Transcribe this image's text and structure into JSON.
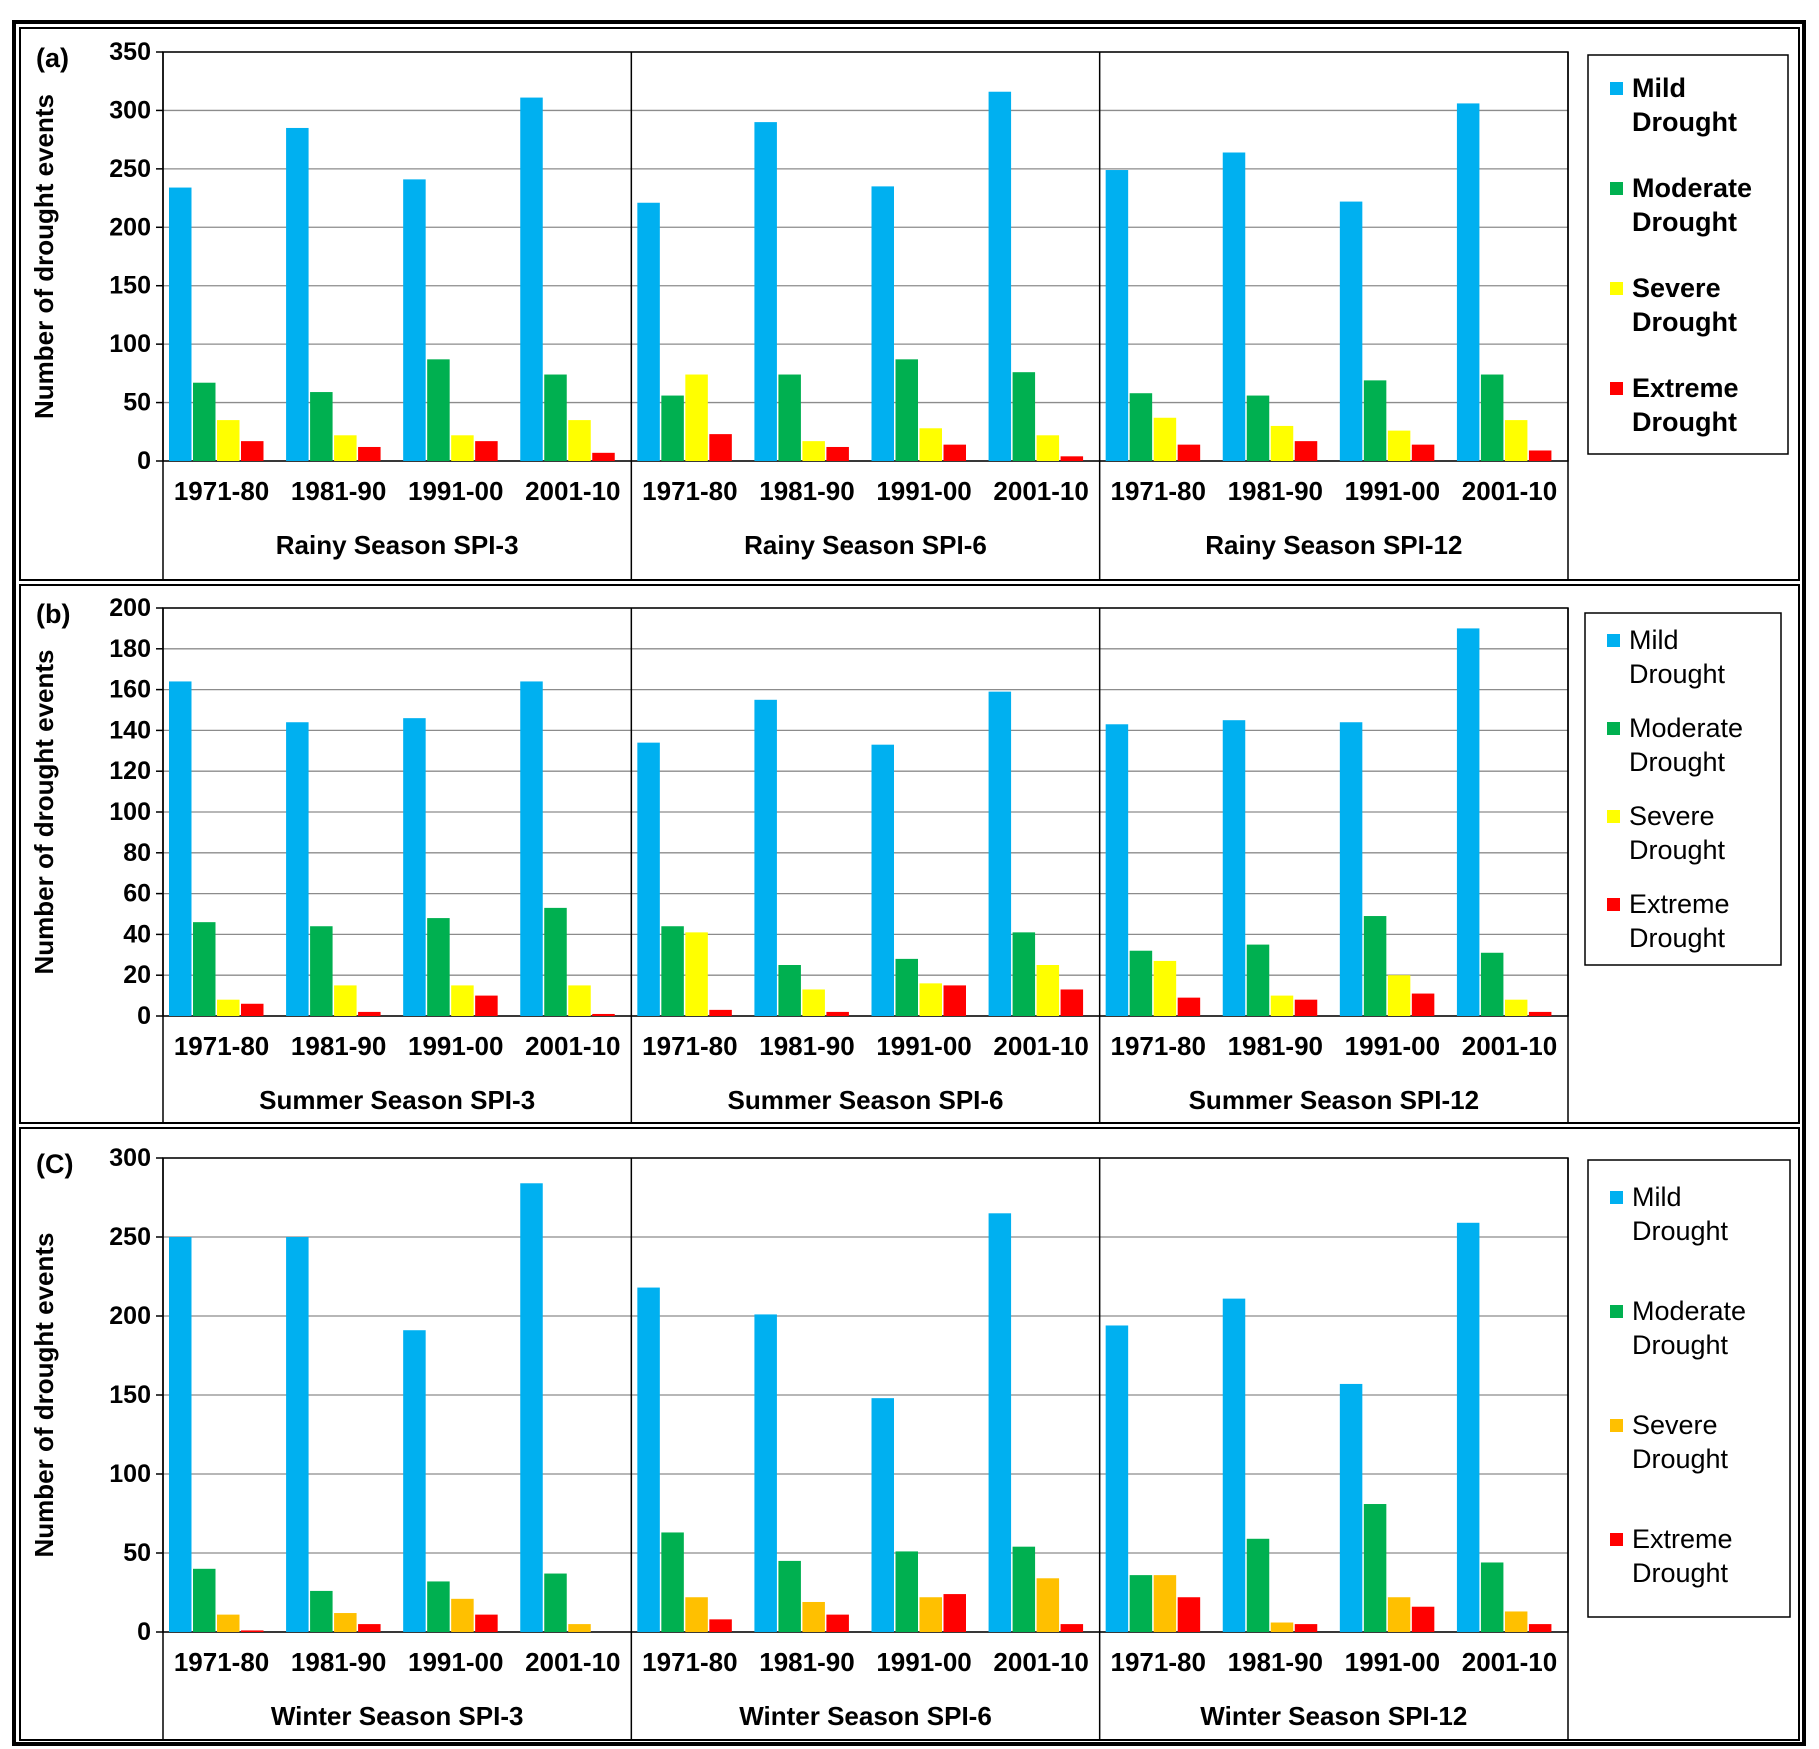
{
  "colors": {
    "mild": "#00b0f0",
    "moderate": "#00b050",
    "severe": "#ffff00",
    "severe_winter": "#ffc000",
    "extreme": "#ff0000"
  },
  "chart_data": [
    {
      "type": "bar",
      "panel_label": "(a)",
      "ylabel": "Number of drought events",
      "ylim": [
        0,
        350
      ],
      "yticks": [
        "0",
        "50",
        "100",
        "150",
        "200",
        "250",
        "300",
        "350"
      ],
      "categories": [
        "1971-80",
        "1981-90",
        "1991-00",
        "2001-10"
      ],
      "groups": [
        "Rainy Season SPI-3",
        "Rainy Season SPI-6",
        "Rainy Season SPI-12"
      ],
      "legend": [
        "Mild Drought",
        "Moderate Drought",
        "Severe Drought",
        "Extreme Drought"
      ],
      "legend_bold": true,
      "series": [
        {
          "name": "Mild Drought",
          "color_key": "mild",
          "values": [
            [
              234,
              285,
              241,
              311
            ],
            [
              221,
              290,
              235,
              316
            ],
            [
              249,
              264,
              222,
              306
            ]
          ]
        },
        {
          "name": "Moderate Drought",
          "color_key": "moderate",
          "values": [
            [
              67,
              59,
              87,
              74
            ],
            [
              56,
              74,
              87,
              76
            ],
            [
              58,
              56,
              69,
              74
            ]
          ]
        },
        {
          "name": "Severe Drought",
          "color_key": "severe",
          "values": [
            [
              35,
              22,
              22,
              35
            ],
            [
              74,
              17,
              28,
              22
            ],
            [
              37,
              30,
              26,
              35
            ]
          ]
        },
        {
          "name": "Extreme Drought",
          "color_key": "extreme",
          "values": [
            [
              17,
              12,
              17,
              7
            ],
            [
              23,
              12,
              14,
              4
            ],
            [
              14,
              17,
              14,
              9
            ]
          ]
        }
      ]
    },
    {
      "type": "bar",
      "panel_label": "(b)",
      "ylabel": "Number of drought events",
      "ylim": [
        0,
        200
      ],
      "yticks": [
        "0",
        "20",
        "40",
        "60",
        "80",
        "100",
        "120",
        "140",
        "160",
        "180",
        "200"
      ],
      "categories": [
        "1971-80",
        "1981-90",
        "1991-00",
        "2001-10"
      ],
      "groups": [
        "Summer Season SPI-3",
        "Summer Season SPI-6",
        "Summer Season SPI-12"
      ],
      "legend": [
        "Mild Drought",
        "Moderate Drought",
        "Severe Drought",
        "Extreme Drought"
      ],
      "legend_bold": false,
      "series": [
        {
          "name": "Mild Drought",
          "color_key": "mild",
          "values": [
            [
              164,
              144,
              146,
              164
            ],
            [
              134,
              155,
              133,
              159
            ],
            [
              143,
              145,
              144,
              190
            ]
          ]
        },
        {
          "name": "Moderate Drought",
          "color_key": "moderate",
          "values": [
            [
              46,
              44,
              48,
              53
            ],
            [
              44,
              25,
              28,
              41
            ],
            [
              32,
              35,
              49,
              31
            ]
          ]
        },
        {
          "name": "Severe Drought",
          "color_key": "severe",
          "values": [
            [
              8,
              15,
              15,
              15
            ],
            [
              41,
              13,
              16,
              25
            ],
            [
              27,
              10,
              20,
              8
            ]
          ]
        },
        {
          "name": "Extreme Drought",
          "color_key": "extreme",
          "values": [
            [
              6,
              2,
              10,
              1
            ],
            [
              3,
              2,
              15,
              13
            ],
            [
              9,
              8,
              11,
              2
            ]
          ]
        }
      ]
    },
    {
      "type": "bar",
      "panel_label": "(C)",
      "ylabel": "Number of drought events",
      "ylim": [
        0,
        300
      ],
      "yticks": [
        "0",
        "50",
        "100",
        "150",
        "200",
        "250",
        "300"
      ],
      "categories": [
        "1971-80",
        "1981-90",
        "1991-00",
        "2001-10"
      ],
      "groups": [
        "Winter Season SPI-3",
        "Winter Season SPI-6",
        "Winter  Season SPI-12"
      ],
      "legend": [
        "Mild Drought",
        "Moderate Drought",
        "Severe Drought",
        "Extreme Drought"
      ],
      "legend_bold": false,
      "series": [
        {
          "name": "Mild Drought",
          "color_key": "mild",
          "values": [
            [
              250,
              250,
              191,
              284
            ],
            [
              218,
              201,
              148,
              265
            ],
            [
              194,
              211,
              157,
              259
            ]
          ]
        },
        {
          "name": "Moderate Drought",
          "color_key": "moderate",
          "values": [
            [
              40,
              26,
              32,
              37
            ],
            [
              63,
              45,
              51,
              54
            ],
            [
              36,
              59,
              81,
              44
            ]
          ]
        },
        {
          "name": "Severe Drought",
          "color_key": "severe_winter",
          "values": [
            [
              11,
              12,
              21,
              5
            ],
            [
              22,
              19,
              22,
              34
            ],
            [
              36,
              6,
              22,
              13
            ]
          ]
        },
        {
          "name": "Extreme Drought",
          "color_key": "extreme",
          "values": [
            [
              1,
              5,
              11,
              0
            ],
            [
              8,
              11,
              24,
              5
            ],
            [
              22,
              5,
              16,
              5
            ]
          ]
        }
      ]
    }
  ]
}
